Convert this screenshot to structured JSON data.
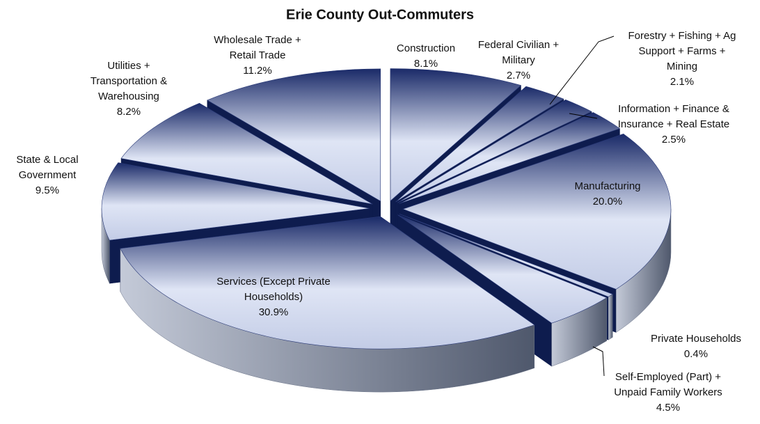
{
  "chart_data": {
    "type": "pie",
    "title": "Erie County Out-Commuters",
    "categories": [
      "Construction",
      "Federal Civilian + Military",
      "Forestry + Fishing + Ag Support + Farms + Mining",
      "Information + Finance & Insurance + Real Estate",
      "Manufacturing",
      "Private Households",
      "Self-Employed (Part) + Unpaid Family Workers",
      "Services (Except Private Households)",
      "State & Local Government",
      "Utilities + Transportation & Warehousing",
      "Wholesale Trade + Retail Trade"
    ],
    "values": [
      8.1,
      2.7,
      2.1,
      2.5,
      20.0,
      0.4,
      4.5,
      30.9,
      9.5,
      8.2,
      11.2
    ],
    "value_labels": [
      "8.1%",
      "2.7%",
      "2.1%",
      "2.5%",
      "20.0%",
      "0.4%",
      "4.5%",
      "30.9%",
      "9.5%",
      "8.2%",
      "11.2%"
    ],
    "color": "#1f2f6e"
  }
}
